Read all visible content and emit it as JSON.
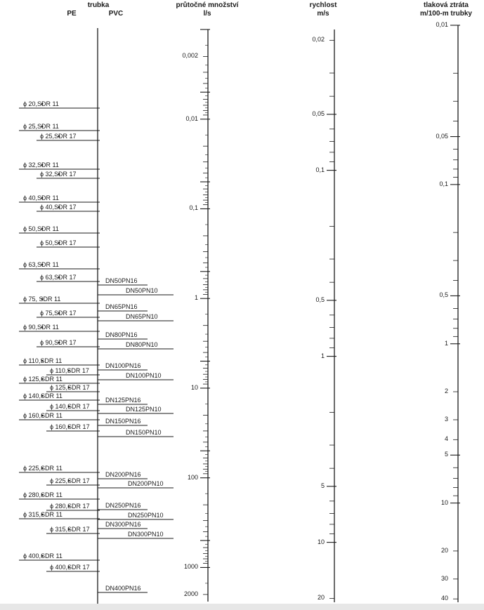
{
  "header": {
    "pipe": "trubka",
    "pe": "PE",
    "pvc": "PVC",
    "flow": "průtočné množství",
    "flow_unit": "l/s",
    "speed": "rychlost",
    "speed_unit": "m/s",
    "loss": "tlaková ztráta",
    "loss_unit": "m/100-m trubky"
  },
  "pe_pipes": [
    "ϕ 20,SDR 11",
    "ϕ 25,SDR 11",
    "ϕ 25,SDR 17",
    "ϕ 32,SDR 11",
    "ϕ 32,SDR 17",
    "ϕ 40,SDR 11",
    "ϕ 40,SDR 17",
    "ϕ 50,SDR 11",
    "ϕ 50,SDR 17",
    "ϕ 63,SDR 11",
    "ϕ 63,SDR 17",
    "ϕ 75, SDR 11",
    "ϕ 75,SDR 17",
    "ϕ 90,SDR 11",
    "ϕ 90,SDR 17",
    "ϕ 110,SDR 11",
    "ϕ 110,SDR 17",
    "ϕ 125,SDR 11",
    "ϕ 125,SDR 17",
    "ϕ 140,SDR 11",
    "ϕ 140,SDR 17",
    "ϕ 160,SDR 11",
    "ϕ 160,SDR 17",
    "ϕ 225,SDR 11",
    "ϕ 225,SDR 17",
    "ϕ 280,SDR 11",
    "ϕ 280,SDR 17",
    "ϕ 315,SDR 11",
    "ϕ 315,SDR 17",
    "ϕ 400,SDR 11",
    "ϕ 400,SDR 17"
  ],
  "pvc_pipes": [
    "DN50PN16",
    "DN50PN10",
    "DN65PN16",
    "DN65PN10",
    "DN80PN16",
    "DN80PN10",
    "DN100PN16",
    "DN100PN10",
    "DN125PN16",
    "DN125PN10",
    "DN150PN16",
    "DN150PN10",
    "DN200PN16",
    "DN200PN10",
    "DN250PN16",
    "DN250PN10",
    "DN300PN16",
    "DN300PN10",
    "DN400PN16"
  ],
  "flow_scale": [
    "0,002",
    "0,01",
    "0,1",
    "1",
    "10",
    "100",
    "1000",
    "2000"
  ],
  "speed_scale": [
    "0,02",
    "0,05",
    "0,1",
    "0,5",
    "1",
    "5",
    "10",
    "20"
  ],
  "loss_scale": [
    "0,01",
    "0,05",
    "0,1",
    "0,5",
    "1",
    "2",
    "3",
    "4",
    "5",
    "10",
    "20",
    "30",
    "40"
  ]
}
